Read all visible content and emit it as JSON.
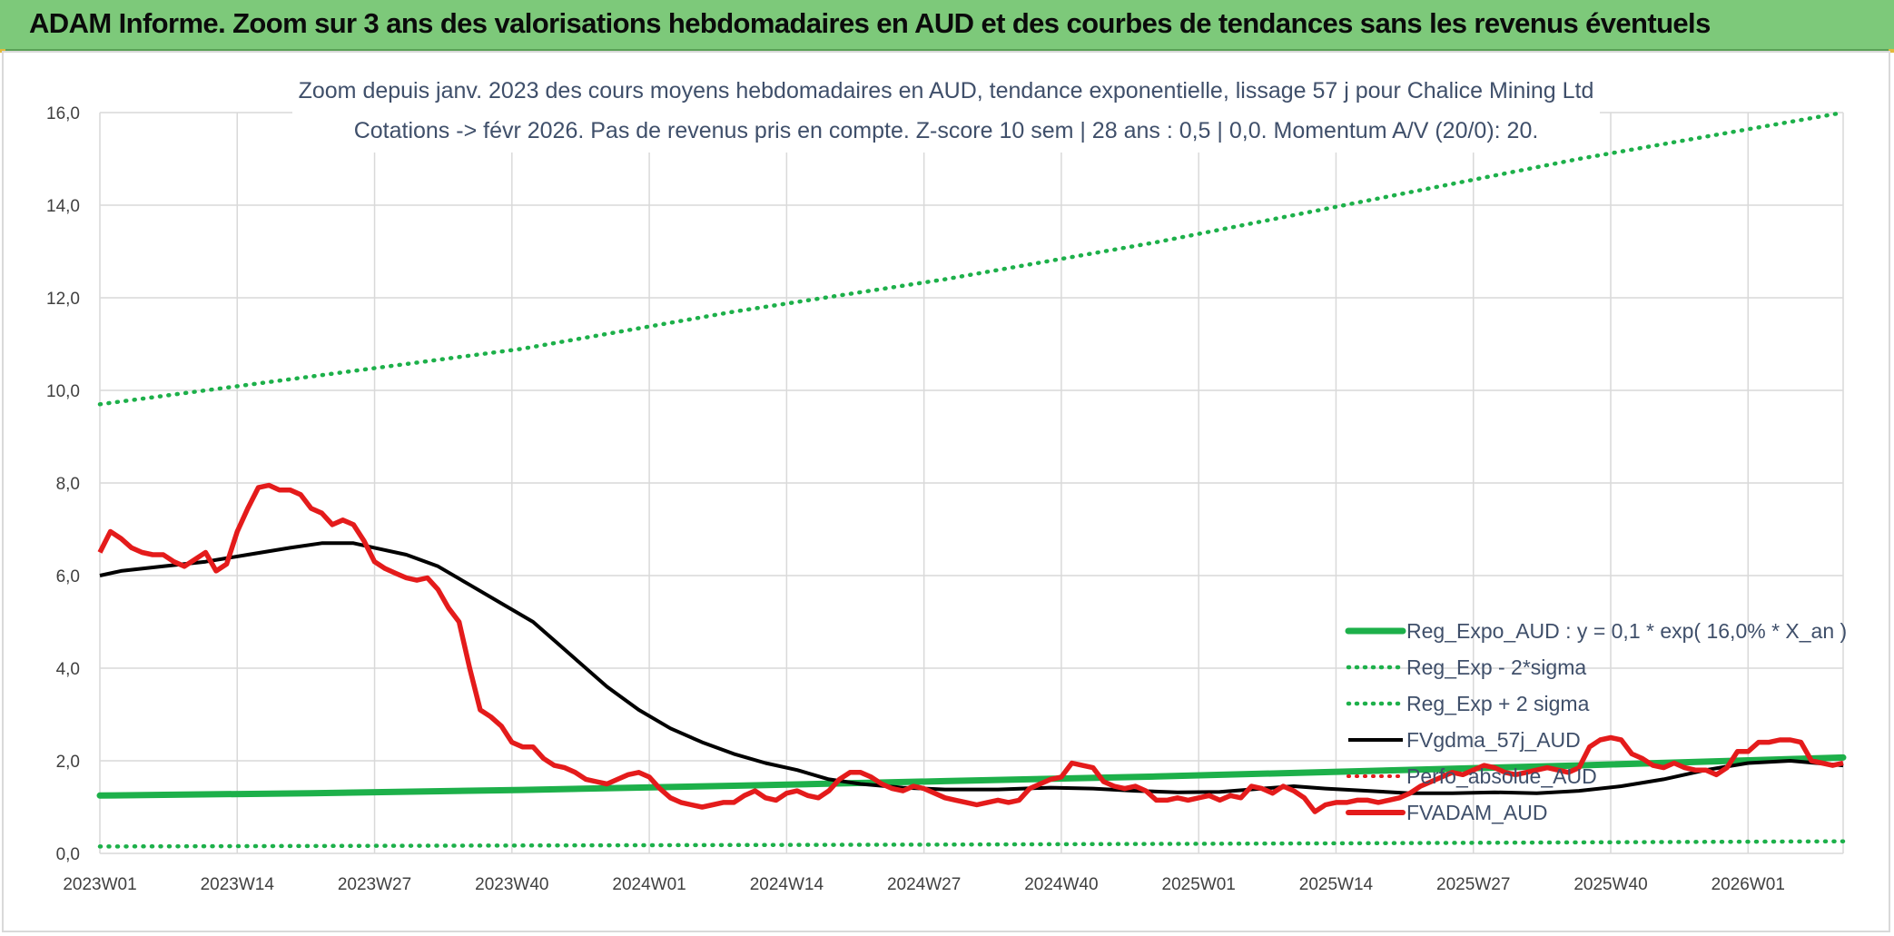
{
  "banner": {
    "title": "ADAM Informe. Zoom sur 3 ans des valorisations hebdomadaires en AUD et des courbes de tendances sans les revenus éventuels"
  },
  "colors": {
    "banner_bg": "#7dc97a",
    "trend_green": "#1db04a",
    "price_red": "#e41b1b",
    "gdma_black": "#000000",
    "perf_red": "#e41b1b"
  },
  "chart_data": {
    "type": "line",
    "title_lines": [
      "Zoom depuis janv. 2023 des cours moyens hebdomadaires en AUD, tendance exponentielle, lissage 57 j pour Chalice Mining Ltd",
      "Cotations -> févr 2026. Pas de revenus pris en compte. Z-score 10 sem | 28 ans : 0,5 | 0,0. Momentum A/V (20/0): 20."
    ],
    "xlabel": "",
    "ylabel": "",
    "ylim": [
      0,
      16
    ],
    "yticks": [
      "0,0",
      "2,0",
      "4,0",
      "6,0",
      "8,0",
      "10,0",
      "12,0",
      "14,0",
      "16,0"
    ],
    "x_tick_labels": [
      "2023W01",
      "2023W14",
      "2023W27",
      "2023W40",
      "2024W01",
      "2024W14",
      "2024W27",
      "2024W40",
      "2025W01",
      "2025W14",
      "2025W27",
      "2025W40",
      "2026W01"
    ],
    "x_tick_weeks": [
      0,
      13,
      26,
      39,
      52,
      65,
      78,
      91,
      104,
      117,
      130,
      143,
      156
    ],
    "x_count": 166,
    "grid": true,
    "legend_position": "bottom-right",
    "legend": [
      {
        "label": "Reg_Expo_AUD : y = 0,1 * exp( 16,0% *  X_an )",
        "style": "thick-green"
      },
      {
        "label": "Reg_Exp - 2*sigma",
        "style": "dotted-green"
      },
      {
        "label": "Reg_Exp + 2 sigma",
        "style": "dotted-green"
      },
      {
        "label": "FVgdma_57j_AUD",
        "style": "black"
      },
      {
        "label": "Perfo_absolue_AUD",
        "style": "dotted-red"
      },
      {
        "label": "FVADAM_AUD",
        "style": "red"
      }
    ],
    "series": [
      {
        "name": "Reg_Expo_AUD",
        "points": [
          [
            0,
            1.25
          ],
          [
            20,
            1.3
          ],
          [
            40,
            1.37
          ],
          [
            60,
            1.46
          ],
          [
            80,
            1.56
          ],
          [
            100,
            1.66
          ],
          [
            120,
            1.78
          ],
          [
            140,
            1.9
          ],
          [
            165,
            2.07
          ]
        ]
      },
      {
        "name": "Reg_Exp - 2*sigma",
        "points": [
          [
            0,
            0.15
          ],
          [
            40,
            0.17
          ],
          [
            80,
            0.19
          ],
          [
            120,
            0.22
          ],
          [
            165,
            0.26
          ]
        ]
      },
      {
        "name": "Reg_Exp + 2 sigma",
        "points": [
          [
            0,
            9.7
          ],
          [
            20,
            10.3
          ],
          [
            40,
            10.9
          ],
          [
            60,
            11.7
          ],
          [
            80,
            12.4
          ],
          [
            100,
            13.2
          ],
          [
            120,
            14.1
          ],
          [
            140,
            15.0
          ],
          [
            165,
            16.0
          ]
        ]
      },
      {
        "name": "FVgdma_57j_AUD",
        "points": [
          [
            0,
            6.0
          ],
          [
            2,
            6.1
          ],
          [
            6,
            6.2
          ],
          [
            10,
            6.3
          ],
          [
            14,
            6.45
          ],
          [
            18,
            6.6
          ],
          [
            21,
            6.7
          ],
          [
            24,
            6.7
          ],
          [
            26,
            6.6
          ],
          [
            29,
            6.45
          ],
          [
            32,
            6.2
          ],
          [
            35,
            5.8
          ],
          [
            38,
            5.4
          ],
          [
            41,
            5.0
          ],
          [
            43,
            4.6
          ],
          [
            45,
            4.2
          ],
          [
            48,
            3.6
          ],
          [
            51,
            3.1
          ],
          [
            54,
            2.7
          ],
          [
            57,
            2.4
          ],
          [
            60,
            2.15
          ],
          [
            63,
            1.95
          ],
          [
            66,
            1.8
          ],
          [
            69,
            1.6
          ],
          [
            72,
            1.5
          ],
          [
            76,
            1.42
          ],
          [
            80,
            1.38
          ],
          [
            85,
            1.38
          ],
          [
            90,
            1.42
          ],
          [
            94,
            1.4
          ],
          [
            98,
            1.35
          ],
          [
            102,
            1.32
          ],
          [
            106,
            1.33
          ],
          [
            110,
            1.4
          ],
          [
            113,
            1.45
          ],
          [
            116,
            1.4
          ],
          [
            120,
            1.35
          ],
          [
            124,
            1.3
          ],
          [
            128,
            1.3
          ],
          [
            132,
            1.32
          ],
          [
            136,
            1.3
          ],
          [
            140,
            1.35
          ],
          [
            144,
            1.45
          ],
          [
            148,
            1.6
          ],
          [
            152,
            1.8
          ],
          [
            156,
            1.95
          ],
          [
            160,
            2.0
          ],
          [
            165,
            1.9
          ]
        ]
      },
      {
        "name": "FVADAM_AUD",
        "points": [
          [
            0,
            6.5
          ],
          [
            1,
            6.95
          ],
          [
            2,
            6.8
          ],
          [
            3,
            6.6
          ],
          [
            4,
            6.5
          ],
          [
            5,
            6.45
          ],
          [
            6,
            6.45
          ],
          [
            7,
            6.3
          ],
          [
            8,
            6.2
          ],
          [
            9,
            6.35
          ],
          [
            10,
            6.5
          ],
          [
            11,
            6.1
          ],
          [
            12,
            6.25
          ],
          [
            13,
            6.95
          ],
          [
            14,
            7.45
          ],
          [
            15,
            7.9
          ],
          [
            16,
            7.95
          ],
          [
            17,
            7.85
          ],
          [
            18,
            7.85
          ],
          [
            19,
            7.75
          ],
          [
            20,
            7.45
          ],
          [
            21,
            7.35
          ],
          [
            22,
            7.1
          ],
          [
            23,
            7.2
          ],
          [
            24,
            7.1
          ],
          [
            25,
            6.75
          ],
          [
            26,
            6.3
          ],
          [
            27,
            6.15
          ],
          [
            28,
            6.05
          ],
          [
            29,
            5.95
          ],
          [
            30,
            5.9
          ],
          [
            31,
            5.95
          ],
          [
            32,
            5.7
          ],
          [
            33,
            5.3
          ],
          [
            34,
            5.0
          ],
          [
            35,
            4.0
          ],
          [
            36,
            3.1
          ],
          [
            37,
            2.95
          ],
          [
            38,
            2.75
          ],
          [
            39,
            2.4
          ],
          [
            40,
            2.3
          ],
          [
            41,
            2.3
          ],
          [
            42,
            2.05
          ],
          [
            43,
            1.9
          ],
          [
            44,
            1.85
          ],
          [
            45,
            1.75
          ],
          [
            46,
            1.6
          ],
          [
            47,
            1.55
          ],
          [
            48,
            1.5
          ],
          [
            49,
            1.6
          ],
          [
            50,
            1.7
          ],
          [
            51,
            1.75
          ],
          [
            52,
            1.65
          ],
          [
            53,
            1.4
          ],
          [
            54,
            1.2
          ],
          [
            55,
            1.1
          ],
          [
            56,
            1.05
          ],
          [
            57,
            1.0
          ],
          [
            58,
            1.05
          ],
          [
            59,
            1.1
          ],
          [
            60,
            1.1
          ],
          [
            61,
            1.25
          ],
          [
            62,
            1.35
          ],
          [
            63,
            1.2
          ],
          [
            64,
            1.15
          ],
          [
            65,
            1.3
          ],
          [
            66,
            1.35
          ],
          [
            67,
            1.25
          ],
          [
            68,
            1.2
          ],
          [
            69,
            1.35
          ],
          [
            70,
            1.6
          ],
          [
            71,
            1.75
          ],
          [
            72,
            1.75
          ],
          [
            73,
            1.65
          ],
          [
            74,
            1.5
          ],
          [
            75,
            1.4
          ],
          [
            76,
            1.35
          ],
          [
            77,
            1.45
          ],
          [
            78,
            1.4
          ],
          [
            79,
            1.3
          ],
          [
            80,
            1.2
          ],
          [
            81,
            1.15
          ],
          [
            82,
            1.1
          ],
          [
            83,
            1.05
          ],
          [
            84,
            1.1
          ],
          [
            85,
            1.15
          ],
          [
            86,
            1.1
          ],
          [
            87,
            1.15
          ],
          [
            88,
            1.4
          ],
          [
            89,
            1.5
          ],
          [
            90,
            1.6
          ],
          [
            91,
            1.65
          ],
          [
            92,
            1.95
          ],
          [
            93,
            1.9
          ],
          [
            94,
            1.85
          ],
          [
            95,
            1.55
          ],
          [
            96,
            1.45
          ],
          [
            97,
            1.4
          ],
          [
            98,
            1.45
          ],
          [
            99,
            1.35
          ],
          [
            100,
            1.15
          ],
          [
            101,
            1.15
          ],
          [
            102,
            1.2
          ],
          [
            103,
            1.15
          ],
          [
            104,
            1.2
          ],
          [
            105,
            1.25
          ],
          [
            106,
            1.15
          ],
          [
            107,
            1.25
          ],
          [
            108,
            1.2
          ],
          [
            109,
            1.45
          ],
          [
            110,
            1.4
          ],
          [
            111,
            1.3
          ],
          [
            112,
            1.45
          ],
          [
            113,
            1.35
          ],
          [
            114,
            1.2
          ],
          [
            115,
            0.9
          ],
          [
            116,
            1.05
          ],
          [
            117,
            1.1
          ],
          [
            118,
            1.1
          ],
          [
            119,
            1.15
          ],
          [
            120,
            1.15
          ],
          [
            121,
            1.1
          ],
          [
            122,
            1.15
          ],
          [
            123,
            1.2
          ],
          [
            124,
            1.3
          ],
          [
            125,
            1.45
          ],
          [
            126,
            1.55
          ],
          [
            127,
            1.65
          ],
          [
            128,
            1.75
          ],
          [
            129,
            1.7
          ],
          [
            130,
            1.8
          ],
          [
            131,
            1.9
          ],
          [
            132,
            1.85
          ],
          [
            133,
            1.75
          ],
          [
            134,
            1.7
          ],
          [
            135,
            1.75
          ],
          [
            136,
            1.8
          ],
          [
            137,
            1.85
          ],
          [
            138,
            1.8
          ],
          [
            139,
            1.75
          ],
          [
            140,
            1.85
          ],
          [
            141,
            2.3
          ],
          [
            142,
            2.45
          ],
          [
            143,
            2.5
          ],
          [
            144,
            2.45
          ],
          [
            145,
            2.15
          ],
          [
            146,
            2.05
          ],
          [
            147,
            1.9
          ],
          [
            148,
            1.85
          ],
          [
            149,
            1.95
          ],
          [
            150,
            1.85
          ],
          [
            151,
            1.8
          ],
          [
            152,
            1.8
          ],
          [
            153,
            1.7
          ],
          [
            154,
            1.85
          ],
          [
            155,
            2.2
          ],
          [
            156,
            2.2
          ],
          [
            157,
            2.4
          ],
          [
            158,
            2.4
          ],
          [
            159,
            2.45
          ],
          [
            160,
            2.45
          ],
          [
            161,
            2.4
          ],
          [
            162,
            2.0
          ],
          [
            163,
            1.95
          ],
          [
            164,
            1.9
          ],
          [
            165,
            1.95
          ]
        ]
      },
      {
        "name": "Perfo_absolue_AUD",
        "points": []
      }
    ]
  }
}
